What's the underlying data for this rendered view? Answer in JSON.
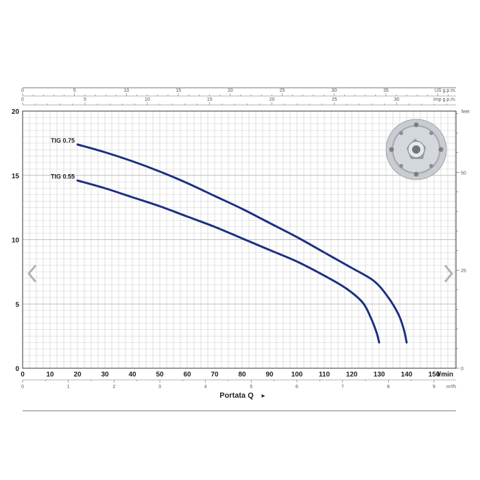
{
  "chart_data": {
    "type": "line",
    "x": {
      "label": "l/min",
      "range": [
        0,
        158
      ],
      "ticks": [
        0,
        10,
        20,
        30,
        40,
        50,
        60,
        70,
        80,
        90,
        100,
        110,
        120,
        130,
        140,
        150
      ]
    },
    "y": {
      "range": [
        0,
        20
      ],
      "ticks": [
        0,
        5,
        10,
        15,
        20
      ]
    },
    "top_axes": [
      {
        "unit": "US g.p.m.",
        "factor": 3.785,
        "ticks": [
          0,
          5,
          10,
          15,
          20,
          25,
          30,
          35
        ]
      },
      {
        "unit": "Imp g.p.m.",
        "factor": 4.546,
        "ticks": [
          0,
          5,
          10,
          15,
          20,
          25,
          30
        ]
      }
    ],
    "bottom_axis": {
      "unit": "m³/h",
      "factor": 16.667,
      "ticks": [
        0,
        1,
        2,
        3,
        4,
        5,
        6,
        7,
        8,
        9
      ]
    },
    "right_axis": {
      "unit": "feet",
      "factor": 0.3048,
      "ticks": [
        0,
        25,
        50
      ]
    },
    "footer": {
      "label": "Portata Q",
      "arrow": "▸"
    },
    "grid": true,
    "series": [
      {
        "name": "TIG 0.75",
        "color": "#1c2f82",
        "points": [
          [
            20,
            17.4
          ],
          [
            30,
            16.8
          ],
          [
            40,
            16.1
          ],
          [
            50,
            15.3
          ],
          [
            60,
            14.4
          ],
          [
            70,
            13.4
          ],
          [
            80,
            12.4
          ],
          [
            90,
            11.3
          ],
          [
            100,
            10.2
          ],
          [
            110,
            9.0
          ],
          [
            120,
            7.8
          ],
          [
            128,
            6.8
          ],
          [
            133,
            5.6
          ],
          [
            137,
            4.2
          ],
          [
            139,
            3.0
          ],
          [
            140,
            2.0
          ]
        ]
      },
      {
        "name": "TIG 0.55",
        "color": "#1c2f82",
        "points": [
          [
            20,
            14.6
          ],
          [
            30,
            14.0
          ],
          [
            40,
            13.3
          ],
          [
            50,
            12.6
          ],
          [
            60,
            11.8
          ],
          [
            70,
            11.0
          ],
          [
            80,
            10.1
          ],
          [
            90,
            9.2
          ],
          [
            100,
            8.3
          ],
          [
            110,
            7.2
          ],
          [
            118,
            6.2
          ],
          [
            124,
            5.1
          ],
          [
            127,
            3.9
          ],
          [
            129,
            2.8
          ],
          [
            130,
            2.0
          ]
        ]
      }
    ]
  },
  "nav": {
    "prev": "‹",
    "next": "›"
  }
}
